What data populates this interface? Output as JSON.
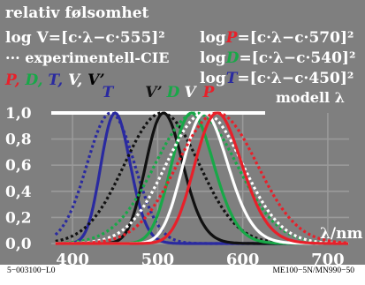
{
  "chart_data": {
    "type": "line",
    "title": "relativ følsomhet",
    "header_left": {
      "formula": "log V=[c·λ−c·555]²",
      "note": "··· experimentell-CIE",
      "legend": [
        {
          "text": "P,",
          "color": "#e8202a"
        },
        {
          "text": "D,",
          "color": "#18a848"
        },
        {
          "text": "T,",
          "color": "#2a2aa0"
        },
        {
          "text": "V,",
          "color": "#ffffff"
        },
        {
          "text": "V’",
          "color": "#000000"
        }
      ]
    },
    "header_right": [
      {
        "prefix": "log",
        "symbol": "P",
        "color": "#e8202a",
        "rest": "=[c·λ−c·570]²"
      },
      {
        "prefix": "log",
        "symbol": "D",
        "color": "#18a848",
        "rest": "=[c·λ−c·540]²"
      },
      {
        "prefix": "log",
        "symbol": "T",
        "color": "#2a2aa0",
        "rest": "=[c·λ−c·450]²"
      }
    ],
    "model_label": "modell  λ",
    "xlabel": "λ/nm",
    "x_ticks": [
      "400",
      "500",
      "600",
      "700"
    ],
    "y_ticks": [
      "0,0",
      "0,2",
      "0,4",
      "0,6",
      "0,8",
      "1,0"
    ],
    "xlim": [
      375,
      725
    ],
    "ylim": [
      0,
      1
    ],
    "grid": true,
    "background": "#7f7f7f",
    "series": [
      {
        "name": "T",
        "color": "#2a2aa0",
        "peak": 450,
        "exp_peak": 445,
        "exp_width": 28
      },
      {
        "name": "V’",
        "color": "#111111",
        "peak": 507,
        "exp_peak": 505,
        "exp_width": 44
      },
      {
        "name": "D",
        "color": "#18a848",
        "peak": 540,
        "exp_peak": 545,
        "exp_width": 48
      },
      {
        "name": "V",
        "color": "#ffffff",
        "peak": 555,
        "exp_peak": 555,
        "exp_width": 45
      },
      {
        "name": "P",
        "color": "#e8202a",
        "peak": 570,
        "exp_peak": 570,
        "exp_width": 47
      }
    ],
    "top_line_color": "#ffffff"
  },
  "footer": {
    "left": "5−003100−L0",
    "right": "ME100−5N/MN990−50"
  }
}
